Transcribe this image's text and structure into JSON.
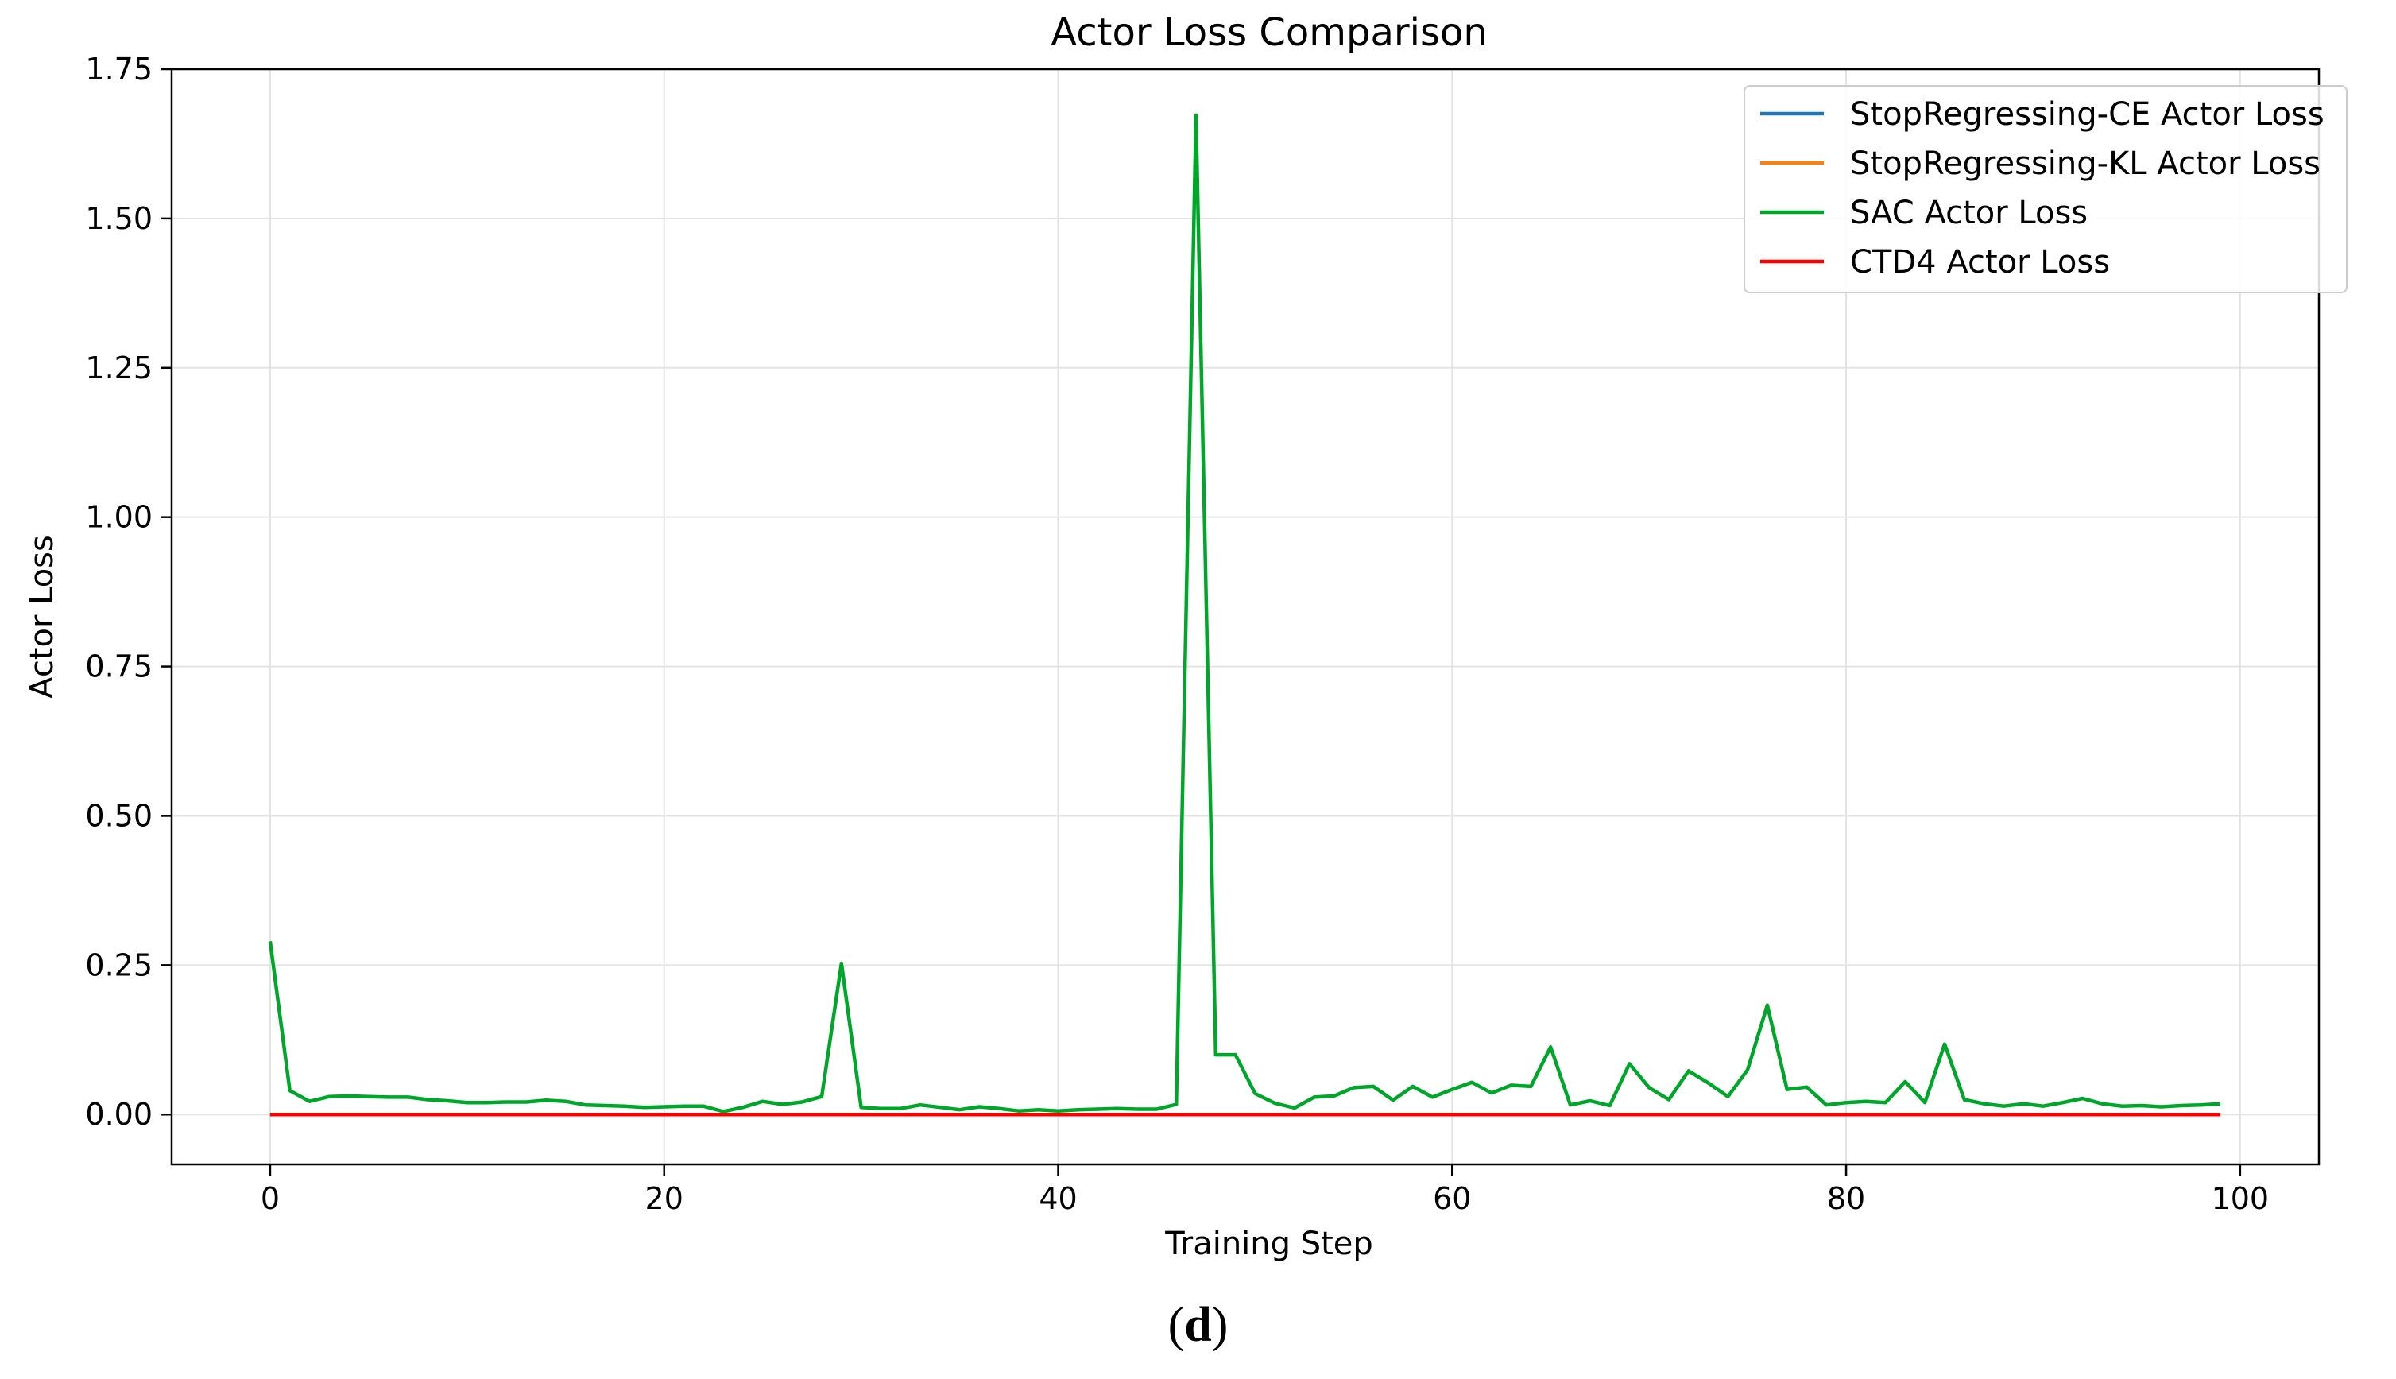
{
  "caption": {
    "open": "(",
    "letter": "d",
    "close": ")"
  },
  "chart_data": {
    "type": "line",
    "title": "Actor Loss Comparison",
    "xlabel": "Training Step",
    "ylabel": "Actor Loss",
    "xlim": [
      -5,
      104
    ],
    "ylim": [
      -0.0835,
      1.75
    ],
    "xticks": [
      0,
      20,
      40,
      60,
      80,
      100
    ],
    "xtick_labels": [
      "0",
      "20",
      "40",
      "60",
      "80",
      "100"
    ],
    "yticks": [
      0,
      0.25,
      0.5,
      0.75,
      1.0,
      1.25,
      1.5,
      1.75
    ],
    "ytick_labels": [
      "0.00",
      "0.25",
      "0.50",
      "0.75",
      "1.00",
      "1.25",
      "1.50",
      "1.75"
    ],
    "grid": true,
    "legend_position": "top-right",
    "x": [
      0,
      1,
      2,
      3,
      4,
      5,
      6,
      7,
      8,
      9,
      10,
      11,
      12,
      13,
      14,
      15,
      16,
      17,
      18,
      19,
      20,
      21,
      22,
      23,
      24,
      25,
      26,
      27,
      28,
      29,
      30,
      31,
      32,
      33,
      34,
      35,
      36,
      37,
      38,
      39,
      40,
      41,
      42,
      43,
      44,
      45,
      46,
      47,
      48,
      49,
      50,
      51,
      52,
      53,
      54,
      55,
      56,
      57,
      58,
      59,
      60,
      61,
      62,
      63,
      64,
      65,
      66,
      67,
      68,
      69,
      70,
      71,
      72,
      73,
      74,
      75,
      76,
      77,
      78,
      79,
      80,
      81,
      82,
      83,
      84,
      85,
      86,
      87,
      88,
      89,
      90,
      91,
      92,
      93,
      94,
      95,
      96,
      97,
      98,
      99
    ],
    "series": [
      {
        "name": "StopRegressing-CE Actor Loss",
        "color": "#1f77b4",
        "values": [
          0,
          0,
          0,
          0,
          0,
          0,
          0,
          0,
          0,
          0,
          0,
          0,
          0,
          0,
          0,
          0,
          0,
          0,
          0,
          0,
          0,
          0,
          0,
          0,
          0,
          0,
          0,
          0,
          0,
          0,
          0,
          0,
          0,
          0,
          0,
          0,
          0,
          0,
          0,
          0,
          0,
          0,
          0,
          0,
          0,
          0,
          0,
          0,
          0,
          0,
          0,
          0,
          0,
          0,
          0,
          0,
          0,
          0,
          0,
          0,
          0,
          0,
          0,
          0,
          0,
          0,
          0,
          0,
          0,
          0,
          0,
          0,
          0,
          0,
          0,
          0,
          0,
          0,
          0,
          0,
          0,
          0,
          0,
          0,
          0,
          0,
          0,
          0,
          0,
          0,
          0,
          0,
          0,
          0,
          0,
          0,
          0,
          0,
          0,
          0
        ]
      },
      {
        "name": "StopRegressing-KL Actor Loss",
        "color": "#ff7f0e",
        "values": [
          0,
          0,
          0,
          0,
          0,
          0,
          0,
          0,
          0,
          0,
          0,
          0,
          0,
          0,
          0,
          0,
          0,
          0,
          0,
          0,
          0,
          0,
          0,
          0,
          0,
          0,
          0,
          0,
          0,
          0,
          0,
          0,
          0,
          0,
          0,
          0,
          0,
          0,
          0,
          0,
          0,
          0,
          0,
          0,
          0,
          0,
          0,
          0,
          0,
          0,
          0,
          0,
          0,
          0,
          0,
          0,
          0,
          0,
          0,
          0,
          0,
          0,
          0,
          0,
          0,
          0,
          0,
          0,
          0,
          0,
          0,
          0,
          0,
          0,
          0,
          0,
          0,
          0,
          0,
          0,
          0,
          0,
          0,
          0,
          0,
          0,
          0,
          0,
          0,
          0,
          0,
          0,
          0,
          0,
          0,
          0,
          0,
          0,
          0,
          0
        ]
      },
      {
        "name": "SAC Actor Loss",
        "color": "#00a629",
        "values": [
          0.29,
          0.04,
          0.022,
          0.03,
          0.031,
          0.03,
          0.029,
          0.029,
          0.025,
          0.023,
          0.02,
          0.02,
          0.021,
          0.021,
          0.024,
          0.022,
          0.016,
          0.015,
          0.014,
          0.012,
          0.013,
          0.014,
          0.014,
          0.005,
          0.012,
          0.022,
          0.017,
          0.021,
          0.03,
          0.253,
          0.012,
          0.01,
          0.01,
          0.016,
          0.012,
          0.008,
          0.013,
          0.01,
          0.006,
          0.008,
          0.006,
          0.008,
          0.009,
          0.01,
          0.009,
          0.009,
          0.017,
          1.673,
          0.1,
          0.1,
          0.035,
          0.019,
          0.011,
          0.029,
          0.031,
          0.045,
          0.047,
          0.024,
          0.047,
          0.029,
          0.042,
          0.054,
          0.036,
          0.049,
          0.047,
          0.113,
          0.016,
          0.023,
          0.015,
          0.085,
          0.045,
          0.025,
          0.073,
          0.053,
          0.03,
          0.075,
          0.183,
          0.042,
          0.046,
          0.016,
          0.02,
          0.022,
          0.02,
          0.055,
          0.02,
          0.118,
          0.025,
          0.018,
          0.014,
          0.018,
          0.014,
          0.02,
          0.027,
          0.018,
          0.014,
          0.015,
          0.013,
          0.015,
          0.016,
          0.018
        ]
      },
      {
        "name": "CTD4 Actor Loss",
        "color": "#ff0000",
        "values": [
          0,
          0,
          0,
          0,
          0,
          0,
          0,
          0,
          0,
          0,
          0,
          0,
          0,
          0,
          0,
          0,
          0,
          0,
          0,
          0,
          0,
          0,
          0,
          0,
          0,
          0,
          0,
          0,
          0,
          0,
          0,
          0,
          0,
          0,
          0,
          0,
          0,
          0,
          0,
          0,
          0,
          0,
          0,
          0,
          0,
          0,
          0,
          0,
          0,
          0,
          0,
          0,
          0,
          0,
          0,
          0,
          0,
          0,
          0,
          0,
          0,
          0,
          0,
          0,
          0,
          0,
          0,
          0,
          0,
          0,
          0,
          0,
          0,
          0,
          0,
          0,
          0,
          0,
          0,
          0,
          0,
          0,
          0,
          0,
          0,
          0,
          0,
          0,
          0,
          0,
          0,
          0,
          0,
          0,
          0,
          0,
          0,
          0,
          0,
          0
        ]
      }
    ]
  }
}
